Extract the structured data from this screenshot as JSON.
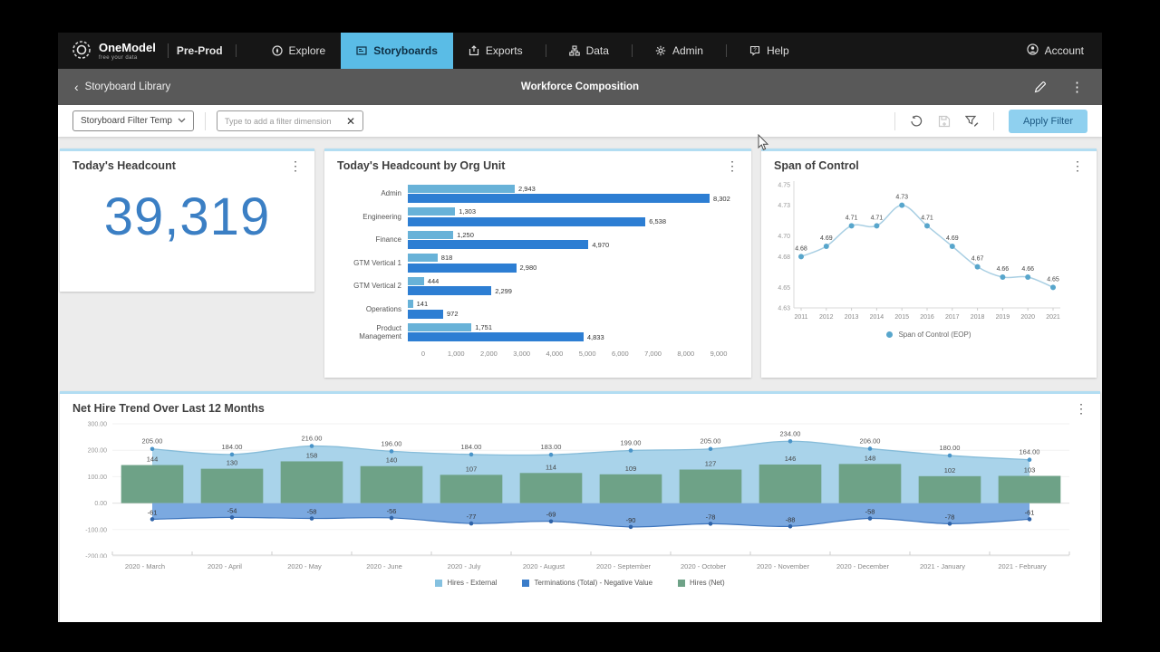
{
  "colors": {
    "active_tab": "#5abce6",
    "apply_btn": "#8fd0ef",
    "apply_txt": "#1d5a84",
    "headline_number": "#3b7fc4",
    "bar_light": "#68b2d8",
    "bar_dark": "#2d7ed3",
    "area_hires": "#a9d3ea",
    "line_hires": "#86bcd9",
    "dot_hires": "#4a94c8",
    "area_term": "#7ba9e0",
    "line_term": "#3f76bd",
    "dot_term": "#2f63a8",
    "bars_net": "#6ea287",
    "span_line": "#a9cfe3",
    "span_point": "#58a6cc",
    "card_accent": "#b2ddf2"
  },
  "topnav": {
    "brand": "OneModel",
    "tagline": "free your data",
    "env": "Pre-Prod",
    "items": [
      {
        "id": "explore",
        "label": "Explore",
        "icon": "explore-icon",
        "active": false
      },
      {
        "id": "storyboards",
        "label": "Storyboards",
        "icon": "storyboards-icon",
        "active": true
      },
      {
        "id": "exports",
        "label": "Exports",
        "icon": "exports-icon",
        "active": false
      },
      {
        "id": "data",
        "label": "Data",
        "icon": "data-icon",
        "active": false
      },
      {
        "id": "admin",
        "label": "Admin",
        "icon": "admin-icon",
        "active": false
      },
      {
        "id": "help",
        "label": "Help",
        "icon": "help-icon",
        "active": false
      }
    ],
    "account_label": "Account"
  },
  "storyboard_header": {
    "back_label": "Storyboard Library",
    "title": "Workforce Composition"
  },
  "filter_bar": {
    "template_dropdown_value": "Storyboard Filter Temp",
    "dimension_placeholder": "Type to add a filter dimension",
    "apply_label": "Apply Filter"
  },
  "cards": {
    "headcount": {
      "title": "Today's Headcount",
      "value": "39,319"
    },
    "org_unit": {
      "title": "Today's Headcount by Org Unit",
      "type": "bar",
      "max": 9000,
      "x_ticks": [
        "0",
        "1,000",
        "2,000",
        "3,000",
        "4,000",
        "5,000",
        "6,000",
        "7,000",
        "8,000",
        "9,000"
      ],
      "rows": [
        {
          "label": "Admin",
          "light": 2943,
          "light_label": "2,943",
          "dark": 8302,
          "dark_label": "8,302"
        },
        {
          "label": "Engineering",
          "light": 1303,
          "light_label": "1,303",
          "dark": 6538,
          "dark_label": "6,538"
        },
        {
          "label": "Finance",
          "light": 1250,
          "light_label": "1,250",
          "dark": 4970,
          "dark_label": "4,970"
        },
        {
          "label": "GTM Vertical 1",
          "light": 818,
          "light_label": "818",
          "dark": 2980,
          "dark_label": "2,980"
        },
        {
          "label": "GTM Vertical 2",
          "light": 444,
          "light_label": "444",
          "dark": 2299,
          "dark_label": "2,299"
        },
        {
          "label": "Operations",
          "light": 141,
          "light_label": "141",
          "dark": 972,
          "dark_label": "972"
        },
        {
          "label": "Product Management",
          "light": 1751,
          "light_label": "1,751",
          "dark": 4833,
          "dark_label": "4,833"
        }
      ]
    },
    "span": {
      "title": "Span of Control",
      "type": "line",
      "years": [
        "2011",
        "2012",
        "2013",
        "2014",
        "2015",
        "2016",
        "2017",
        "2018",
        "2019",
        "2020",
        "2021"
      ],
      "values": [
        4.68,
        4.69,
        4.71,
        4.71,
        4.73,
        4.71,
        4.69,
        4.67,
        4.66,
        4.66,
        4.65
      ],
      "point_labels": [
        "4.68",
        "4.69",
        "4.71",
        "4.71",
        "4.73",
        "4.71",
        "4.69",
        "4.67",
        "4.66",
        "4.66",
        "4.65"
      ],
      "y_ticks": [
        "4.75",
        "4.73",
        "4.70",
        "4.68",
        "4.65",
        "4.63"
      ],
      "y_tick_values": [
        4.75,
        4.73,
        4.7,
        4.68,
        4.65,
        4.63
      ],
      "y_range": [
        4.63,
        4.75
      ],
      "legend": "Span of Control (EOP)"
    },
    "net_hire": {
      "title": "Net Hire Trend Over Last 12 Months",
      "type": "combo",
      "months": [
        "2020 - March",
        "2020 - April",
        "2020 - May",
        "2020 - June",
        "2020 - July",
        "2020 - August",
        "2020 - September",
        "2020 - October",
        "2020 - November",
        "2020 - December",
        "2021 - January",
        "2021 - February"
      ],
      "hires_external": [
        205,
        184,
        216,
        196,
        184,
        183,
        199,
        205,
        234,
        206,
        180,
        164
      ],
      "hires_labels": [
        "205.00",
        "184.00",
        "216.00",
        "196.00",
        "184.00",
        "183.00",
        "199.00",
        "205.00",
        "234.00",
        "206.00",
        "180.00",
        "164.00"
      ],
      "terminations": [
        -61,
        -54,
        -58,
        -56,
        -77,
        -69,
        -90,
        -78,
        -88,
        -58,
        -78,
        -61
      ],
      "term_labels": [
        "-61",
        "-54",
        "-58",
        "-56",
        "-77",
        "-69",
        "-90",
        "-78",
        "-88",
        "-58",
        "-78",
        "-61"
      ],
      "hires_net": [
        144,
        130,
        158,
        140,
        107,
        114,
        109,
        127,
        146,
        148,
        102,
        103
      ],
      "net_labels": [
        "144",
        "130",
        "158",
        "140",
        "107",
        "114",
        "109",
        "127",
        "146",
        "148",
        "102",
        "103"
      ],
      "y_ticks": [
        "300.00",
        "200.00",
        "100.00",
        "0.00",
        "-100.00",
        "-200.00"
      ],
      "y_tick_values": [
        300,
        200,
        100,
        0,
        -100,
        -200
      ],
      "y_range": [
        -200,
        300
      ],
      "legend": [
        {
          "label": "Hires - External",
          "color": "#85c1e0"
        },
        {
          "label": "Terminations (Total) - Negative Value",
          "color": "#3a7cc9"
        },
        {
          "label": "Hires (Net)",
          "color": "#6ea287"
        }
      ]
    }
  }
}
